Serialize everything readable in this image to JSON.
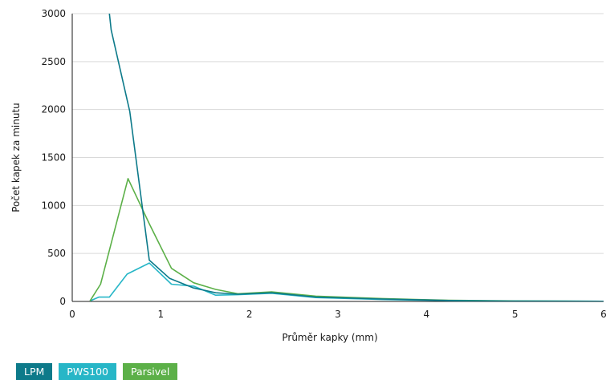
{
  "chart_data": {
    "type": "line",
    "title": "",
    "xlabel": "Průměr kapky (mm)",
    "ylabel": "Počet kapek za minutu",
    "xlim": [
      0,
      6
    ],
    "ylim": [
      0,
      3000
    ],
    "xticks": [
      "0",
      "1",
      "2",
      "3",
      "4",
      "5",
      "6"
    ],
    "yticks": [
      "0",
      "500",
      "1000",
      "1500",
      "2000",
      "2500",
      "3000"
    ],
    "grid": "horizontal",
    "legend_position": "bottom-left",
    "series": [
      {
        "name": "LPM",
        "color": "#0d7a8a",
        "x": [
          0.42,
          0.44,
          0.65,
          0.87,
          1.1,
          1.37,
          1.62,
          1.87,
          2.25,
          2.75,
          3.5,
          4.25,
          5.0,
          6.0
        ],
        "y": [
          3000,
          2830,
          1980,
          430,
          240,
          140,
          90,
          75,
          90,
          45,
          25,
          10,
          3,
          2
        ]
      },
      {
        "name": "PWS100",
        "color": "#27b6c7",
        "x": [
          0.2,
          0.3,
          0.42,
          0.62,
          0.87,
          1.12,
          1.37,
          1.62,
          1.87,
          2.25,
          2.75,
          3.5,
          4.25,
          5.0,
          6.0
        ],
        "y": [
          5,
          45,
          45,
          285,
          400,
          180,
          160,
          65,
          70,
          85,
          40,
          20,
          8,
          3,
          2
        ]
      },
      {
        "name": "Parsivel",
        "color": "#5cb048",
        "x": [
          0.2,
          0.32,
          0.63,
          0.87,
          1.12,
          1.37,
          1.62,
          1.87,
          2.25,
          2.75,
          3.5,
          4.25,
          5.0,
          6.0
        ],
        "y": [
          5,
          180,
          1280,
          810,
          345,
          195,
          125,
          80,
          100,
          55,
          30,
          12,
          5,
          2
        ]
      }
    ]
  }
}
